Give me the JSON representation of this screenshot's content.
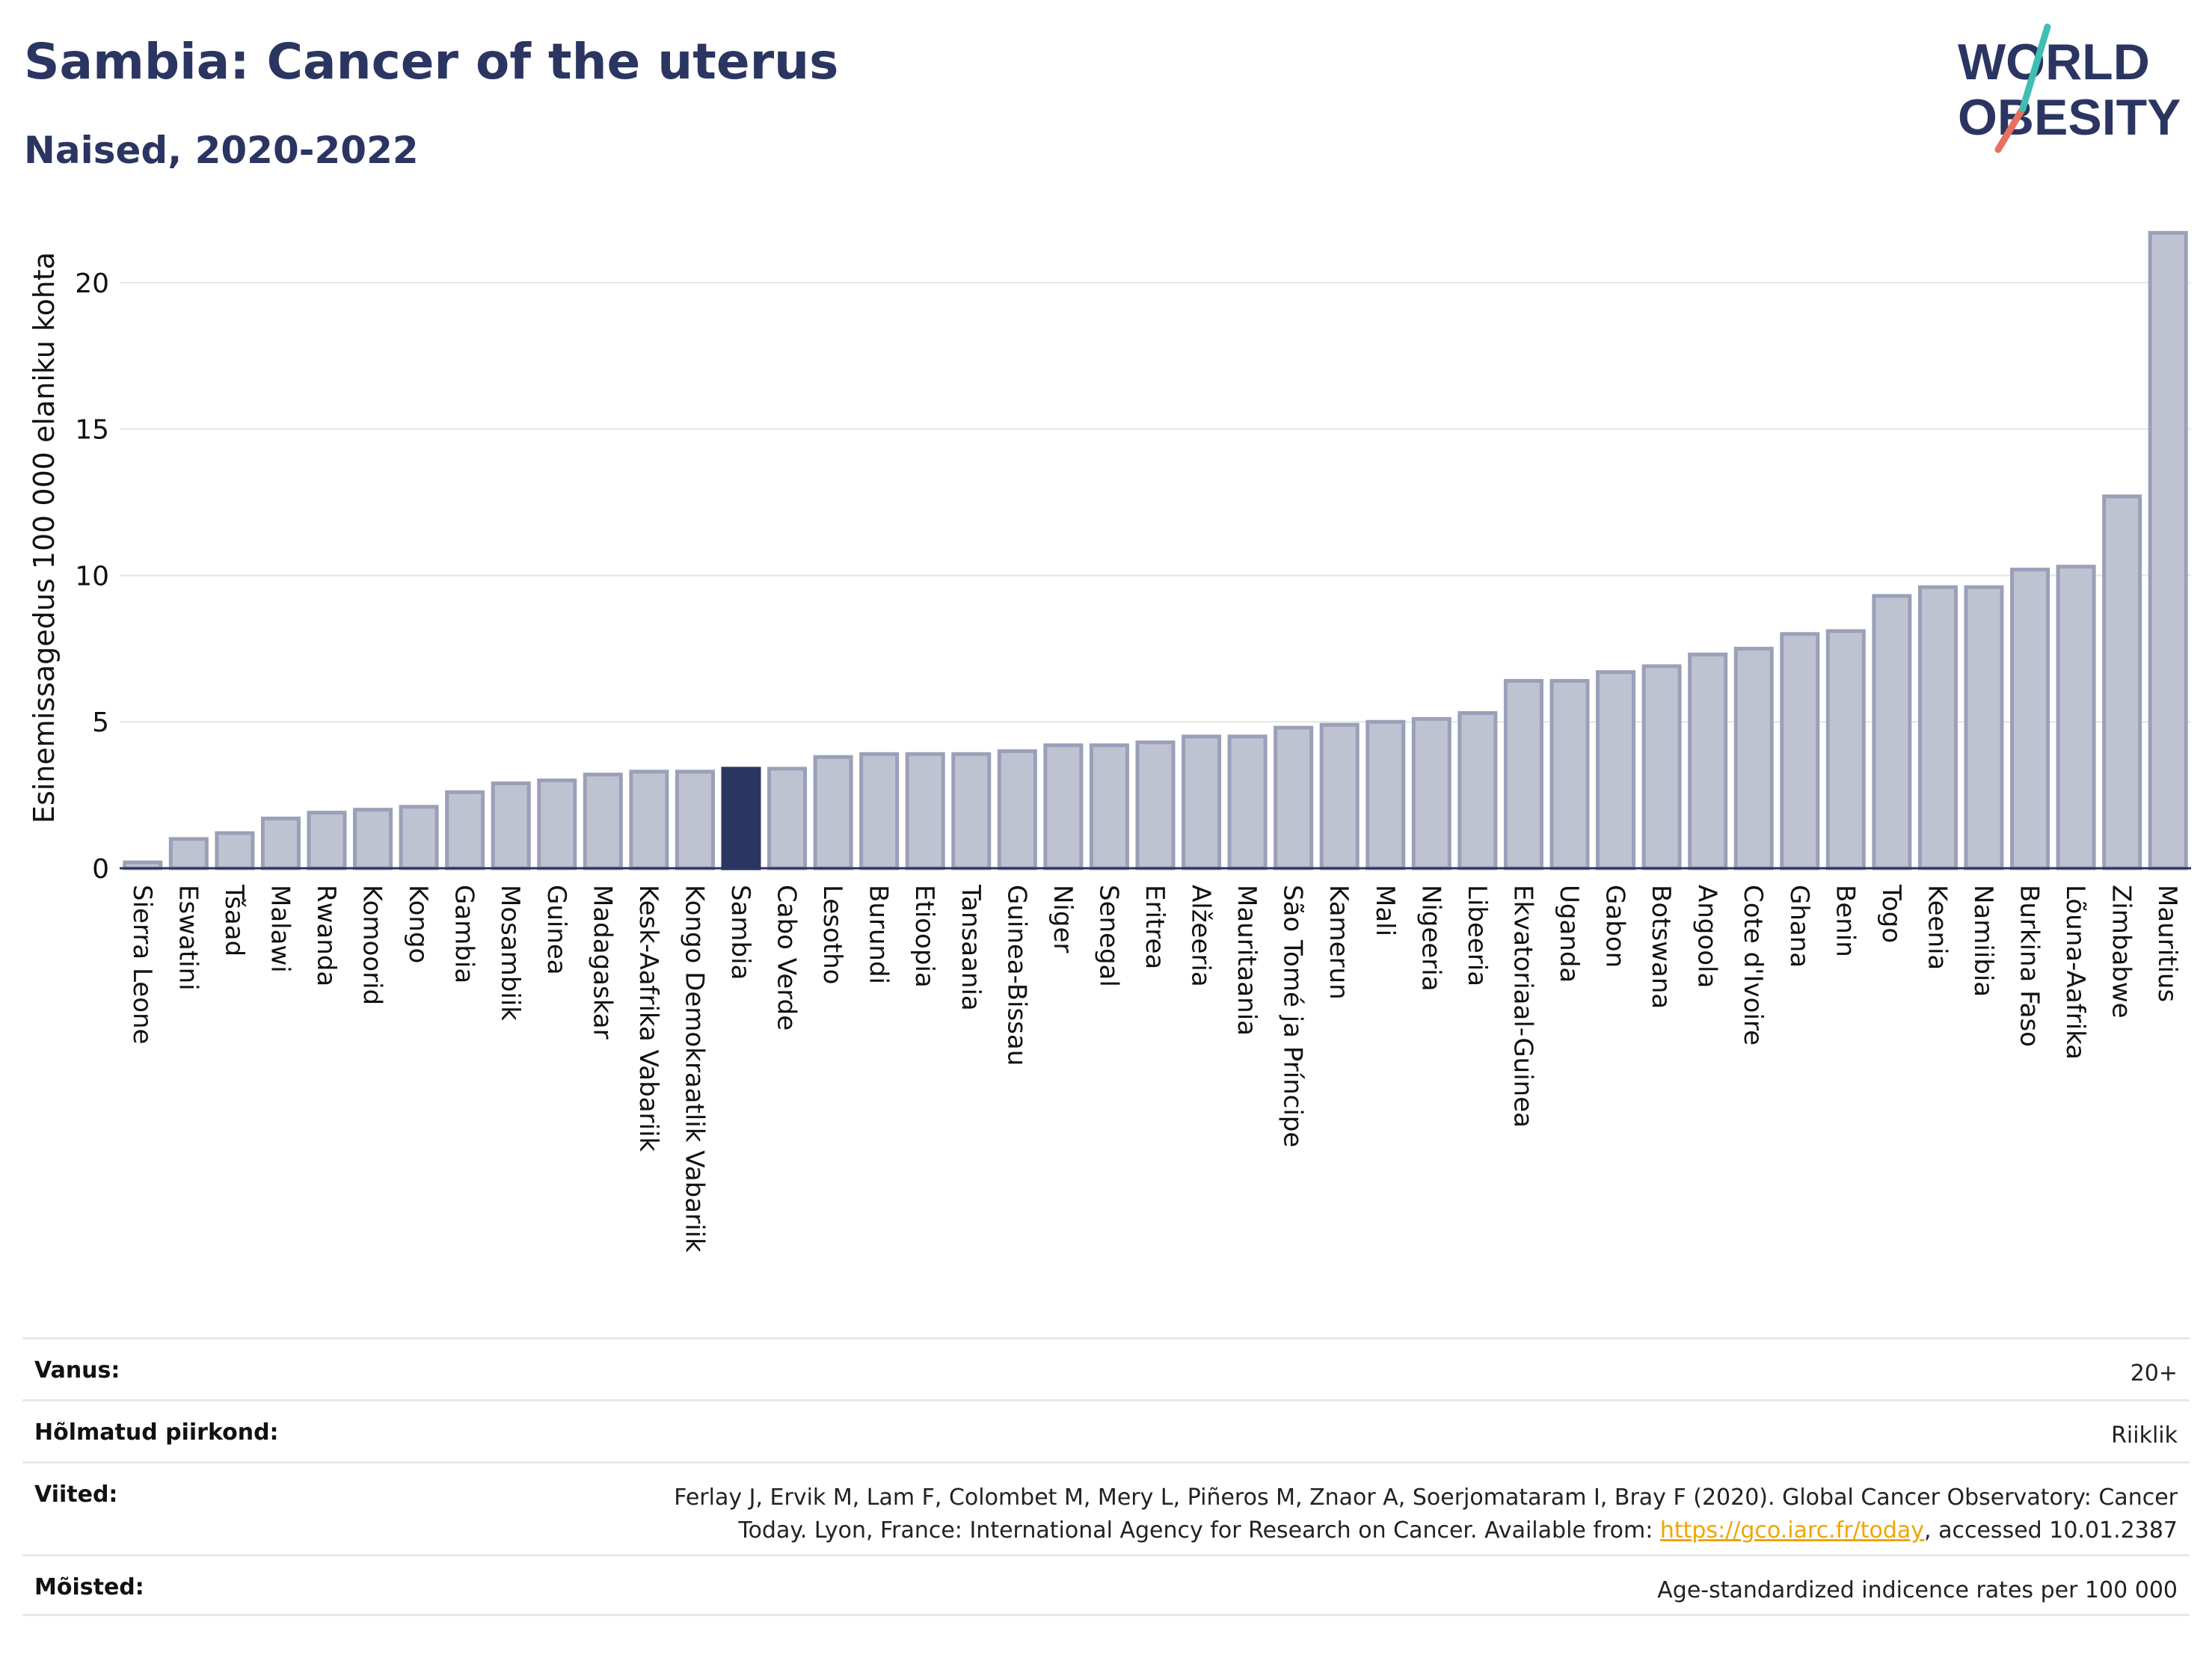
{
  "title": "Sambia: Cancer of the uterus",
  "subtitle": "Naised, 2020-2022",
  "logo": {
    "line1": "WORLD",
    "line2": "OBESITY"
  },
  "colors": {
    "bar": "#bfc3d1",
    "bar_stroke": "#9aa0b8",
    "highlight": "#2b3561",
    "grid": "#e6e6e6",
    "text": "#2b3561"
  },
  "chart_data": {
    "type": "bar",
    "ylabel": "Esinemissagedus 100 000 elaniku kohta",
    "ylim": [
      0,
      22.5
    ],
    "yticks": [
      0,
      5,
      10,
      15,
      20
    ],
    "grid": true,
    "highlight": "Sambia",
    "categories": [
      "Sierra Leone",
      "Eswatini",
      "Tšaad",
      "Malawi",
      "Rwanda",
      "Komoorid",
      "Kongo",
      "Gambia",
      "Mosambiik",
      "Guinea",
      "Madagaskar",
      "Kesk-Aafrika Vabariik",
      "Kongo Demokraatlik Vabariik",
      "Sambia",
      "Cabo Verde",
      "Lesotho",
      "Burundi",
      "Etioopia",
      "Tansaania",
      "Guinea-Bissau",
      "Niger",
      "Senegal",
      "Eritrea",
      "Alžeeria",
      "Mauritaania",
      "São Tomé ja Príncipe",
      "Kamerun",
      "Mali",
      "Nigeeria",
      "Libeeria",
      "Ekvatoriaal-Guinea",
      "Uganda",
      "Gabon",
      "Botswana",
      "Angoola",
      "Cote d'Ivoire",
      "Ghana",
      "Benin",
      "Togo",
      "Keenia",
      "Namiibia",
      "Burkina Faso",
      "Lõuna-Aafrika",
      "Zimbabwe",
      "Mauritius"
    ],
    "values": [
      0.2,
      1.0,
      1.2,
      1.7,
      1.9,
      2.0,
      2.1,
      2.6,
      2.9,
      3.0,
      3.2,
      3.3,
      3.3,
      3.4,
      3.4,
      3.8,
      3.9,
      3.9,
      3.9,
      4.0,
      4.2,
      4.2,
      4.3,
      4.5,
      4.5,
      4.8,
      4.9,
      5.0,
      5.1,
      5.3,
      6.4,
      6.4,
      6.7,
      6.9,
      7.3,
      7.5,
      8.0,
      8.1,
      9.3,
      9.6,
      9.6,
      10.2,
      10.3,
      12.7,
      21.7
    ]
  },
  "meta": {
    "age_label": "Vanus:",
    "age_value": "20+",
    "regions_label": "Hõlmatud piirkond:",
    "regions_value": "Riiklik",
    "refs_label": "Viited:",
    "refs_line1": "Ferlay J, Ervik M, Lam F, Colombet M, Mery L, Piñeros M, Znaor A, Soerjomataram I, Bray F (2020). Global Cancer Observatory: Cancer",
    "refs_line2_pre": "Today. Lyon, France: International Agency for Research on Cancer. Available from: ",
    "refs_link": "https://gco.iarc.fr/today",
    "refs_line2_post": ", accessed 10.01.2387",
    "defs_label": "Mõisted:",
    "defs_value": "Age-standardized indicence rates per 100 000"
  }
}
